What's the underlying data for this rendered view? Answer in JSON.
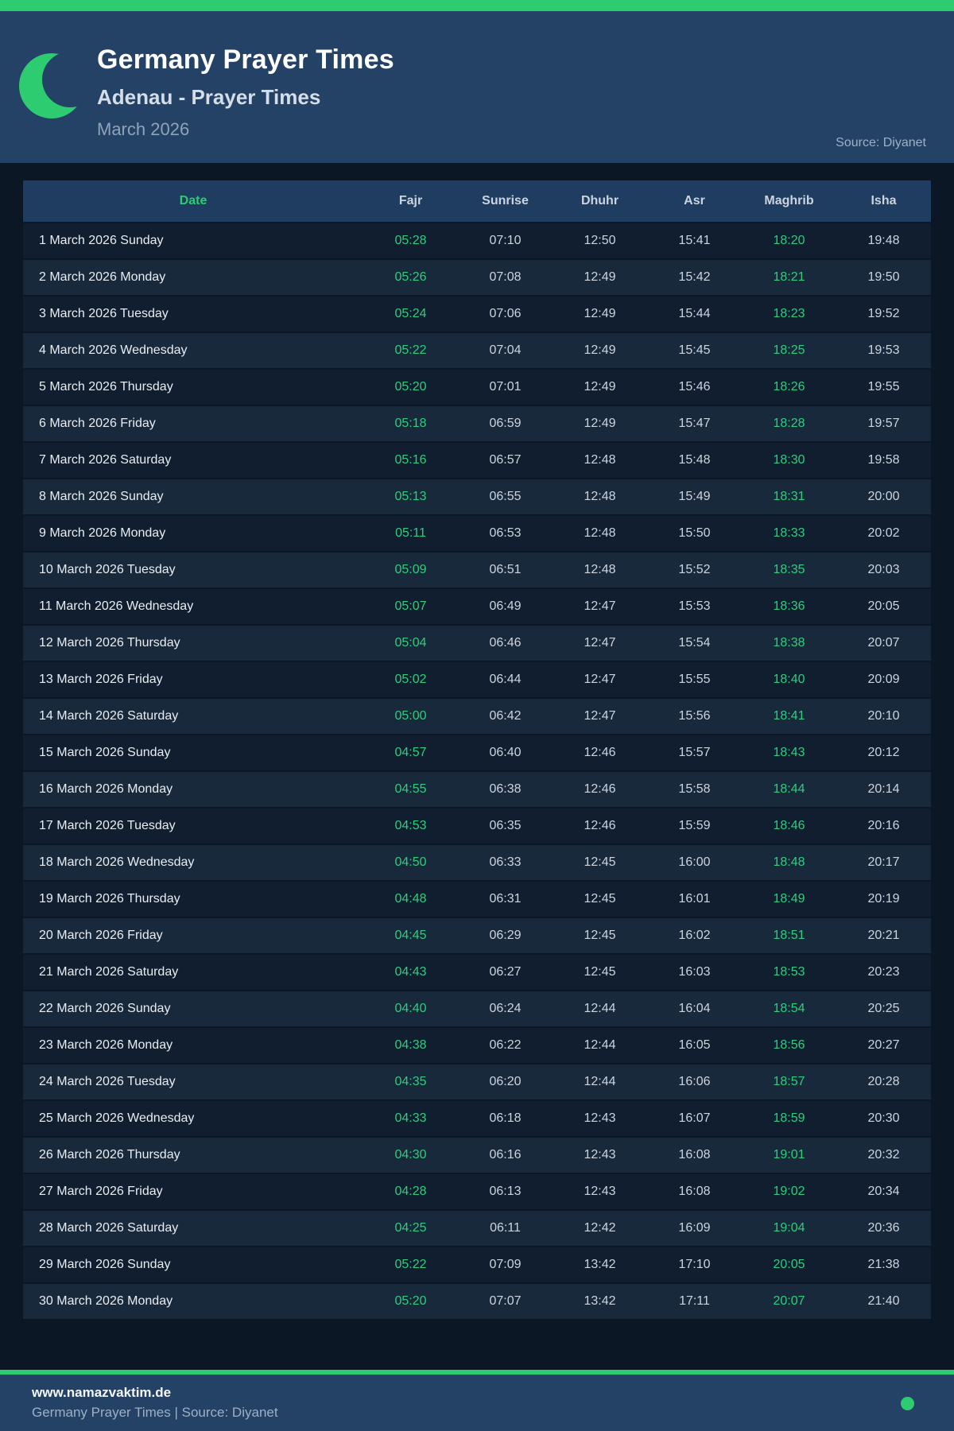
{
  "accent_color": "#2ecc71",
  "header": {
    "title": "Germany Prayer Times",
    "subtitle": "Adenau - Prayer Times",
    "month": "March 2026",
    "source": "Source: Diyanet",
    "moon_icon": "crescent-moon-icon"
  },
  "table": {
    "columns": [
      "Date",
      "Fajr",
      "Sunrise",
      "Dhuhr",
      "Asr",
      "Maghrib",
      "Isha"
    ],
    "rows": [
      {
        "date": "1 March 2026 Sunday",
        "fajr": "05:28",
        "sunrise": "07:10",
        "dhuhr": "12:50",
        "asr": "15:41",
        "maghrib": "18:20",
        "isha": "19:48"
      },
      {
        "date": "2 March 2026 Monday",
        "fajr": "05:26",
        "sunrise": "07:08",
        "dhuhr": "12:49",
        "asr": "15:42",
        "maghrib": "18:21",
        "isha": "19:50"
      },
      {
        "date": "3 March 2026 Tuesday",
        "fajr": "05:24",
        "sunrise": "07:06",
        "dhuhr": "12:49",
        "asr": "15:44",
        "maghrib": "18:23",
        "isha": "19:52"
      },
      {
        "date": "4 March 2026 Wednesday",
        "fajr": "05:22",
        "sunrise": "07:04",
        "dhuhr": "12:49",
        "asr": "15:45",
        "maghrib": "18:25",
        "isha": "19:53"
      },
      {
        "date": "5 March 2026 Thursday",
        "fajr": "05:20",
        "sunrise": "07:01",
        "dhuhr": "12:49",
        "asr": "15:46",
        "maghrib": "18:26",
        "isha": "19:55"
      },
      {
        "date": "6 March 2026 Friday",
        "fajr": "05:18",
        "sunrise": "06:59",
        "dhuhr": "12:49",
        "asr": "15:47",
        "maghrib": "18:28",
        "isha": "19:57"
      },
      {
        "date": "7 March 2026 Saturday",
        "fajr": "05:16",
        "sunrise": "06:57",
        "dhuhr": "12:48",
        "asr": "15:48",
        "maghrib": "18:30",
        "isha": "19:58"
      },
      {
        "date": "8 March 2026 Sunday",
        "fajr": "05:13",
        "sunrise": "06:55",
        "dhuhr": "12:48",
        "asr": "15:49",
        "maghrib": "18:31",
        "isha": "20:00"
      },
      {
        "date": "9 March 2026 Monday",
        "fajr": "05:11",
        "sunrise": "06:53",
        "dhuhr": "12:48",
        "asr": "15:50",
        "maghrib": "18:33",
        "isha": "20:02"
      },
      {
        "date": "10 March 2026 Tuesday",
        "fajr": "05:09",
        "sunrise": "06:51",
        "dhuhr": "12:48",
        "asr": "15:52",
        "maghrib": "18:35",
        "isha": "20:03"
      },
      {
        "date": "11 March 2026 Wednesday",
        "fajr": "05:07",
        "sunrise": "06:49",
        "dhuhr": "12:47",
        "asr": "15:53",
        "maghrib": "18:36",
        "isha": "20:05"
      },
      {
        "date": "12 March 2026 Thursday",
        "fajr": "05:04",
        "sunrise": "06:46",
        "dhuhr": "12:47",
        "asr": "15:54",
        "maghrib": "18:38",
        "isha": "20:07"
      },
      {
        "date": "13 March 2026 Friday",
        "fajr": "05:02",
        "sunrise": "06:44",
        "dhuhr": "12:47",
        "asr": "15:55",
        "maghrib": "18:40",
        "isha": "20:09"
      },
      {
        "date": "14 March 2026 Saturday",
        "fajr": "05:00",
        "sunrise": "06:42",
        "dhuhr": "12:47",
        "asr": "15:56",
        "maghrib": "18:41",
        "isha": "20:10"
      },
      {
        "date": "15 March 2026 Sunday",
        "fajr": "04:57",
        "sunrise": "06:40",
        "dhuhr": "12:46",
        "asr": "15:57",
        "maghrib": "18:43",
        "isha": "20:12"
      },
      {
        "date": "16 March 2026 Monday",
        "fajr": "04:55",
        "sunrise": "06:38",
        "dhuhr": "12:46",
        "asr": "15:58",
        "maghrib": "18:44",
        "isha": "20:14"
      },
      {
        "date": "17 March 2026 Tuesday",
        "fajr": "04:53",
        "sunrise": "06:35",
        "dhuhr": "12:46",
        "asr": "15:59",
        "maghrib": "18:46",
        "isha": "20:16"
      },
      {
        "date": "18 March 2026 Wednesday",
        "fajr": "04:50",
        "sunrise": "06:33",
        "dhuhr": "12:45",
        "asr": "16:00",
        "maghrib": "18:48",
        "isha": "20:17"
      },
      {
        "date": "19 March 2026 Thursday",
        "fajr": "04:48",
        "sunrise": "06:31",
        "dhuhr": "12:45",
        "asr": "16:01",
        "maghrib": "18:49",
        "isha": "20:19"
      },
      {
        "date": "20 March 2026 Friday",
        "fajr": "04:45",
        "sunrise": "06:29",
        "dhuhr": "12:45",
        "asr": "16:02",
        "maghrib": "18:51",
        "isha": "20:21"
      },
      {
        "date": "21 March 2026 Saturday",
        "fajr": "04:43",
        "sunrise": "06:27",
        "dhuhr": "12:45",
        "asr": "16:03",
        "maghrib": "18:53",
        "isha": "20:23"
      },
      {
        "date": "22 March 2026 Sunday",
        "fajr": "04:40",
        "sunrise": "06:24",
        "dhuhr": "12:44",
        "asr": "16:04",
        "maghrib": "18:54",
        "isha": "20:25"
      },
      {
        "date": "23 March 2026 Monday",
        "fajr": "04:38",
        "sunrise": "06:22",
        "dhuhr": "12:44",
        "asr": "16:05",
        "maghrib": "18:56",
        "isha": "20:27"
      },
      {
        "date": "24 March 2026 Tuesday",
        "fajr": "04:35",
        "sunrise": "06:20",
        "dhuhr": "12:44",
        "asr": "16:06",
        "maghrib": "18:57",
        "isha": "20:28"
      },
      {
        "date": "25 March 2026 Wednesday",
        "fajr": "04:33",
        "sunrise": "06:18",
        "dhuhr": "12:43",
        "asr": "16:07",
        "maghrib": "18:59",
        "isha": "20:30"
      },
      {
        "date": "26 March 2026 Thursday",
        "fajr": "04:30",
        "sunrise": "06:16",
        "dhuhr": "12:43",
        "asr": "16:08",
        "maghrib": "19:01",
        "isha": "20:32"
      },
      {
        "date": "27 March 2026 Friday",
        "fajr": "04:28",
        "sunrise": "06:13",
        "dhuhr": "12:43",
        "asr": "16:08",
        "maghrib": "19:02",
        "isha": "20:34"
      },
      {
        "date": "28 March 2026 Saturday",
        "fajr": "04:25",
        "sunrise": "06:11",
        "dhuhr": "12:42",
        "asr": "16:09",
        "maghrib": "19:04",
        "isha": "20:36"
      },
      {
        "date": "29 March 2026 Sunday",
        "fajr": "05:22",
        "sunrise": "07:09",
        "dhuhr": "13:42",
        "asr": "17:10",
        "maghrib": "20:05",
        "isha": "21:38"
      },
      {
        "date": "30 March 2026 Monday",
        "fajr": "05:20",
        "sunrise": "07:07",
        "dhuhr": "13:42",
        "asr": "17:11",
        "maghrib": "20:07",
        "isha": "21:40"
      }
    ]
  },
  "footer": {
    "website": "www.namazvaktim.de",
    "tagline": "Germany Prayer Times | Source: Diyanet"
  }
}
